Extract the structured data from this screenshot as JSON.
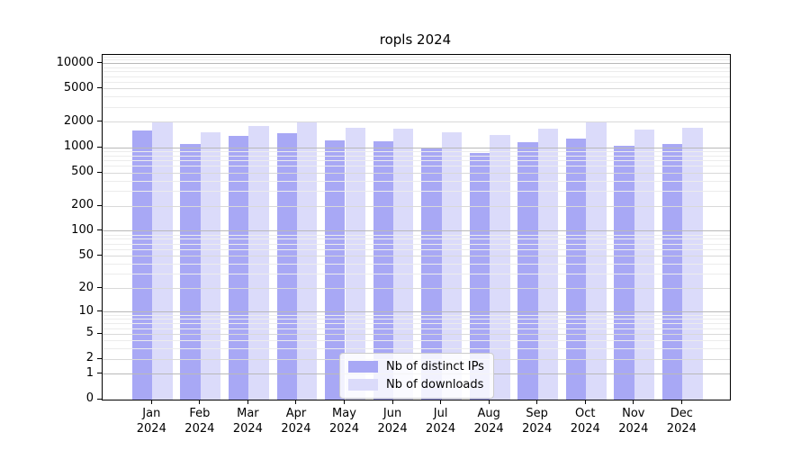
{
  "title": "ropls 2024",
  "chart_data": {
    "type": "bar",
    "title": "ropls 2024",
    "categories": [
      "Jan",
      "Feb",
      "Mar",
      "Apr",
      "May",
      "Jun",
      "Jul",
      "Aug",
      "Sep",
      "Oct",
      "Nov",
      "Dec"
    ],
    "year_label": "2024",
    "series": [
      {
        "name": "Nb of distinct IPs",
        "color": "#a8a8f5",
        "values": [
          1610,
          1110,
          1380,
          1500,
          1230,
          1180,
          1000,
          865,
          1170,
          1290,
          1060,
          1100
        ]
      },
      {
        "name": "Nb of downloads",
        "color": "#dbdbfa",
        "values": [
          2040,
          1530,
          1800,
          2010,
          1730,
          1700,
          1520,
          1410,
          1670,
          1990,
          1650,
          1720
        ]
      }
    ],
    "xlabel": "",
    "ylabel": "",
    "y_ticks": [
      0,
      1,
      2,
      5,
      10,
      20,
      50,
      100,
      200,
      500,
      1000,
      2000,
      5000,
      10000
    ],
    "scale": "log1p",
    "ylim": [
      0,
      12700
    ],
    "grid": "on, drawn above bars; majors at powers of 10, labeled lines at 2x/5x, minors at 3,4,6,7,8,9 multiples",
    "legend_position": "lower center",
    "frame": "full black box",
    "colors": {
      "grid_major": "#b9b9b9",
      "grid_labeled": "#d9d9d9",
      "grid_minor": "#ececec",
      "axis": "#000000",
      "legend_border": "#cccccc"
    }
  }
}
